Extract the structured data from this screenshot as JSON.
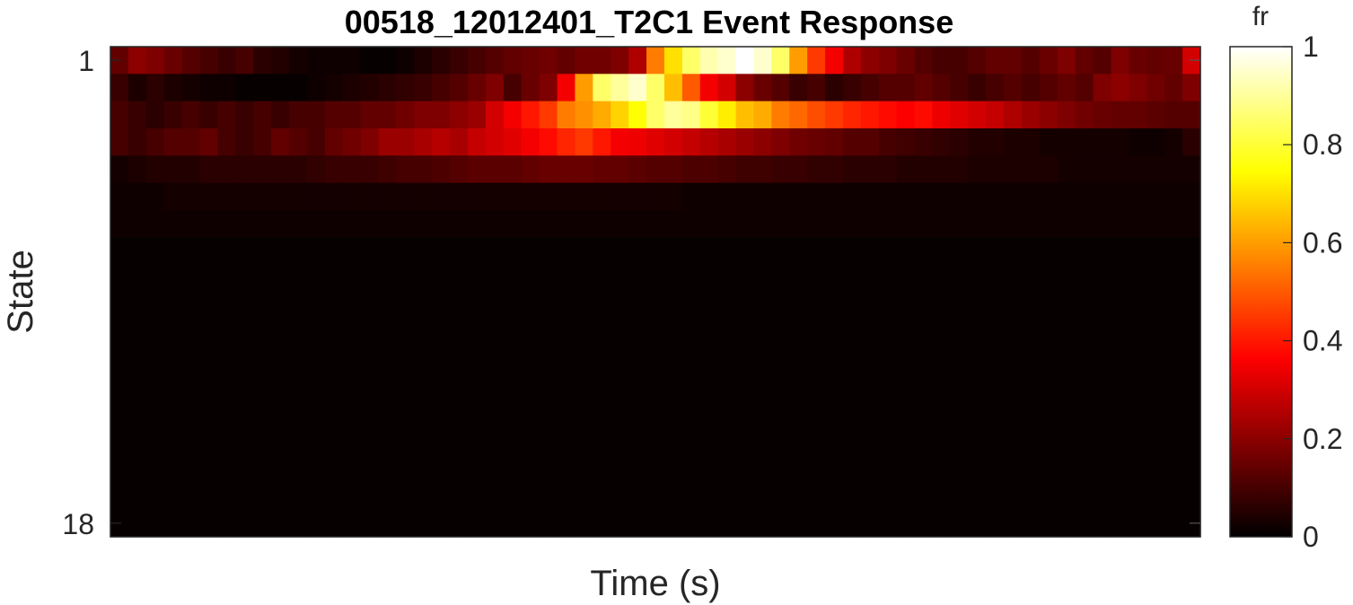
{
  "chart_data": {
    "type": "heatmap",
    "title": "00518_12012401_T2C1 Event Response",
    "xlabel": "Time (s)",
    "ylabel": "State",
    "y_ticks": [
      "1",
      "18"
    ],
    "colormap": "hot",
    "colorbar": {
      "label": "fr",
      "range": [
        0,
        1
      ],
      "ticks": [
        "0",
        "0.2",
        "0.4",
        "0.6",
        "0.8",
        "1"
      ],
      "placement": "right"
    },
    "n_rows": 18,
    "n_cols": 61,
    "rows": [
      [
        0.14,
        0.2,
        0.18,
        0.15,
        0.12,
        0.1,
        0.08,
        0.1,
        0.06,
        0.05,
        0.03,
        0.02,
        0.02,
        0.02,
        0.01,
        0.01,
        0.02,
        0.04,
        0.06,
        0.08,
        0.1,
        0.12,
        0.14,
        0.15,
        0.16,
        0.14,
        0.16,
        0.16,
        0.18,
        0.25,
        0.55,
        0.7,
        0.85,
        0.92,
        0.95,
        1.0,
        0.95,
        0.85,
        0.6,
        0.45,
        0.35,
        0.25,
        0.2,
        0.18,
        0.15,
        0.12,
        0.1,
        0.1,
        0.12,
        0.14,
        0.14,
        0.12,
        0.15,
        0.18,
        0.14,
        0.12,
        0.18,
        0.15,
        0.14,
        0.15,
        0.3
      ],
      [
        0.08,
        0.04,
        0.06,
        0.04,
        0.03,
        0.02,
        0.02,
        0.01,
        0.01,
        0.01,
        0.01,
        0.02,
        0.03,
        0.04,
        0.05,
        0.06,
        0.07,
        0.08,
        0.1,
        0.12,
        0.15,
        0.18,
        0.1,
        0.15,
        0.18,
        0.35,
        0.6,
        0.85,
        0.9,
        0.95,
        0.85,
        0.65,
        0.5,
        0.35,
        0.3,
        0.2,
        0.15,
        0.12,
        0.08,
        0.1,
        0.06,
        0.08,
        0.1,
        0.12,
        0.12,
        0.14,
        0.12,
        0.1,
        0.08,
        0.1,
        0.12,
        0.1,
        0.12,
        0.14,
        0.12,
        0.18,
        0.2,
        0.18,
        0.16,
        0.14,
        0.18
      ],
      [
        0.1,
        0.08,
        0.06,
        0.08,
        0.1,
        0.08,
        0.1,
        0.08,
        0.1,
        0.08,
        0.1,
        0.1,
        0.12,
        0.12,
        0.14,
        0.14,
        0.16,
        0.18,
        0.18,
        0.2,
        0.22,
        0.3,
        0.35,
        0.4,
        0.45,
        0.55,
        0.58,
        0.62,
        0.68,
        0.75,
        0.85,
        0.9,
        0.88,
        0.8,
        0.72,
        0.65,
        0.62,
        0.55,
        0.52,
        0.48,
        0.45,
        0.42,
        0.4,
        0.38,
        0.36,
        0.38,
        0.34,
        0.32,
        0.3,
        0.28,
        0.25,
        0.22,
        0.2,
        0.18,
        0.16,
        0.15,
        0.14,
        0.14,
        0.13,
        0.12,
        0.12
      ],
      [
        0.1,
        0.08,
        0.1,
        0.12,
        0.12,
        0.14,
        0.1,
        0.08,
        0.1,
        0.14,
        0.12,
        0.1,
        0.14,
        0.16,
        0.18,
        0.22,
        0.22,
        0.24,
        0.26,
        0.24,
        0.28,
        0.3,
        0.32,
        0.35,
        0.38,
        0.42,
        0.45,
        0.4,
        0.35,
        0.34,
        0.32,
        0.3,
        0.28,
        0.26,
        0.24,
        0.22,
        0.2,
        0.18,
        0.16,
        0.15,
        0.14,
        0.12,
        0.12,
        0.1,
        0.09,
        0.08,
        0.07,
        0.06,
        0.05,
        0.05,
        0.04,
        0.04,
        0.03,
        0.03,
        0.03,
        0.03,
        0.03,
        0.02,
        0.02,
        0.03,
        0.06
      ],
      [
        0.03,
        0.04,
        0.05,
        0.05,
        0.05,
        0.06,
        0.06,
        0.06,
        0.06,
        0.06,
        0.06,
        0.07,
        0.08,
        0.08,
        0.08,
        0.09,
        0.1,
        0.1,
        0.11,
        0.12,
        0.13,
        0.13,
        0.13,
        0.14,
        0.15,
        0.15,
        0.15,
        0.14,
        0.14,
        0.13,
        0.12,
        0.12,
        0.11,
        0.11,
        0.1,
        0.09,
        0.09,
        0.08,
        0.08,
        0.07,
        0.07,
        0.06,
        0.06,
        0.06,
        0.05,
        0.05,
        0.05,
        0.05,
        0.04,
        0.04,
        0.04,
        0.04,
        0.04,
        0.03,
        0.03,
        0.03,
        0.03,
        0.03,
        0.03,
        0.03,
        0.03
      ],
      [
        0.02,
        0.02,
        0.02,
        0.03,
        0.03,
        0.03,
        0.03,
        0.03,
        0.03,
        0.03,
        0.03,
        0.03,
        0.03,
        0.03,
        0.03,
        0.03,
        0.03,
        0.03,
        0.03,
        0.03,
        0.03,
        0.03,
        0.03,
        0.03,
        0.03,
        0.03,
        0.03,
        0.03,
        0.03,
        0.03,
        0.03,
        0.03,
        0.02,
        0.02,
        0.02,
        0.02,
        0.02,
        0.02,
        0.02,
        0.02,
        0.02,
        0.02,
        0.02,
        0.02,
        0.02,
        0.02,
        0.02,
        0.02,
        0.02,
        0.02,
        0.02,
        0.02,
        0.02,
        0.02,
        0.02,
        0.02,
        0.02,
        0.02,
        0.02,
        0.02,
        0.02
      ],
      [
        0.02,
        0.02,
        0.02,
        0.02,
        0.02,
        0.02,
        0.02,
        0.02,
        0.02,
        0.02,
        0.02,
        0.02,
        0.02,
        0.02,
        0.02,
        0.02,
        0.02,
        0.02,
        0.02,
        0.02,
        0.02,
        0.02,
        0.02,
        0.02,
        0.02,
        0.02,
        0.02,
        0.02,
        0.02,
        0.02,
        0.02,
        0.02,
        0.02,
        0.02,
        0.02,
        0.02,
        0.02,
        0.02,
        0.02,
        0.02,
        0.02,
        0.02,
        0.02,
        0.02,
        0.02,
        0.02,
        0.02,
        0.02,
        0.02,
        0.02,
        0.02,
        0.02,
        0.02,
        0.02,
        0.02,
        0.02,
        0.02,
        0.02,
        0.02,
        0.02,
        0.02
      ],
      [
        0.01,
        0.01,
        0.01,
        0.01,
        0.01,
        0.01,
        0.01,
        0.01,
        0.01,
        0.01,
        0.01,
        0.01,
        0.01,
        0.01,
        0.01,
        0.01,
        0.01,
        0.01,
        0.01,
        0.01,
        0.01,
        0.01,
        0.01,
        0.01,
        0.01,
        0.01,
        0.01,
        0.01,
        0.01,
        0.01,
        0.01,
        0.01,
        0.01,
        0.01,
        0.01,
        0.01,
        0.01,
        0.01,
        0.01,
        0.01,
        0.01,
        0.01,
        0.01,
        0.01,
        0.01,
        0.01,
        0.01,
        0.01,
        0.01,
        0.01,
        0.01,
        0.01,
        0.01,
        0.01,
        0.01,
        0.01,
        0.01,
        0.01,
        0.01,
        0.01,
        0.01
      ],
      [
        0.01,
        0.01,
        0.01,
        0.01,
        0.01,
        0.01,
        0.01,
        0.01,
        0.01,
        0.01,
        0.01,
        0.01,
        0.01,
        0.01,
        0.01,
        0.01,
        0.01,
        0.01,
        0.01,
        0.01,
        0.01,
        0.01,
        0.01,
        0.01,
        0.01,
        0.01,
        0.01,
        0.01,
        0.01,
        0.01,
        0.01,
        0.01,
        0.01,
        0.01,
        0.01,
        0.01,
        0.01,
        0.01,
        0.01,
        0.01,
        0.01,
        0.01,
        0.01,
        0.01,
        0.01,
        0.01,
        0.01,
        0.01,
        0.01,
        0.01,
        0.01,
        0.01,
        0.01,
        0.01,
        0.01,
        0.01,
        0.01,
        0.01,
        0.01,
        0.01,
        0.01
      ],
      [
        0.01,
        0.01,
        0.01,
        0.01,
        0.01,
        0.01,
        0.01,
        0.01,
        0.01,
        0.01,
        0.01,
        0.01,
        0.01,
        0.01,
        0.01,
        0.01,
        0.01,
        0.01,
        0.01,
        0.01,
        0.01,
        0.01,
        0.01,
        0.01,
        0.01,
        0.01,
        0.01,
        0.01,
        0.01,
        0.01,
        0.01,
        0.01,
        0.01,
        0.01,
        0.01,
        0.01,
        0.01,
        0.01,
        0.01,
        0.01,
        0.01,
        0.01,
        0.01,
        0.01,
        0.01,
        0.01,
        0.01,
        0.01,
        0.01,
        0.01,
        0.01,
        0.01,
        0.01,
        0.01,
        0.01,
        0.01,
        0.01,
        0.01,
        0.01,
        0.01,
        0.01
      ],
      [
        0.01,
        0.01,
        0.01,
        0.01,
        0.01,
        0.01,
        0.01,
        0.01,
        0.01,
        0.01,
        0.01,
        0.01,
        0.01,
        0.01,
        0.01,
        0.01,
        0.01,
        0.01,
        0.01,
        0.01,
        0.01,
        0.01,
        0.01,
        0.01,
        0.01,
        0.01,
        0.01,
        0.01,
        0.01,
        0.01,
        0.01,
        0.01,
        0.01,
        0.01,
        0.01,
        0.01,
        0.01,
        0.01,
        0.01,
        0.01,
        0.01,
        0.01,
        0.01,
        0.01,
        0.01,
        0.01,
        0.01,
        0.01,
        0.01,
        0.01,
        0.01,
        0.01,
        0.01,
        0.01,
        0.01,
        0.01,
        0.01,
        0.01,
        0.01,
        0.01,
        0.01
      ],
      [
        0.01,
        0.01,
        0.01,
        0.01,
        0.01,
        0.01,
        0.01,
        0.01,
        0.01,
        0.01,
        0.01,
        0.01,
        0.01,
        0.01,
        0.01,
        0.01,
        0.01,
        0.01,
        0.01,
        0.01,
        0.01,
        0.01,
        0.01,
        0.01,
        0.01,
        0.01,
        0.01,
        0.01,
        0.01,
        0.01,
        0.01,
        0.01,
        0.01,
        0.01,
        0.01,
        0.01,
        0.01,
        0.01,
        0.01,
        0.01,
        0.01,
        0.01,
        0.01,
        0.01,
        0.01,
        0.01,
        0.01,
        0.01,
        0.01,
        0.01,
        0.01,
        0.01,
        0.01,
        0.01,
        0.01,
        0.01,
        0.01,
        0.01,
        0.01,
        0.01,
        0.01
      ],
      [
        0.01,
        0.01,
        0.01,
        0.01,
        0.01,
        0.01,
        0.01,
        0.01,
        0.01,
        0.01,
        0.01,
        0.01,
        0.01,
        0.01,
        0.01,
        0.01,
        0.01,
        0.01,
        0.01,
        0.01,
        0.01,
        0.01,
        0.01,
        0.01,
        0.01,
        0.01,
        0.01,
        0.01,
        0.01,
        0.01,
        0.01,
        0.01,
        0.01,
        0.01,
        0.01,
        0.01,
        0.01,
        0.01,
        0.01,
        0.01,
        0.01,
        0.01,
        0.01,
        0.01,
        0.01,
        0.01,
        0.01,
        0.01,
        0.01,
        0.01,
        0.01,
        0.01,
        0.01,
        0.01,
        0.01,
        0.01,
        0.01,
        0.01,
        0.01,
        0.01,
        0.01
      ],
      [
        0.01,
        0.01,
        0.01,
        0.01,
        0.01,
        0.01,
        0.01,
        0.01,
        0.01,
        0.01,
        0.01,
        0.01,
        0.01,
        0.01,
        0.01,
        0.01,
        0.01,
        0.01,
        0.01,
        0.01,
        0.01,
        0.01,
        0.01,
        0.01,
        0.01,
        0.01,
        0.01,
        0.01,
        0.01,
        0.01,
        0.01,
        0.01,
        0.01,
        0.01,
        0.01,
        0.01,
        0.01,
        0.01,
        0.01,
        0.01,
        0.01,
        0.01,
        0.01,
        0.01,
        0.01,
        0.01,
        0.01,
        0.01,
        0.01,
        0.01,
        0.01,
        0.01,
        0.01,
        0.01,
        0.01,
        0.01,
        0.01,
        0.01,
        0.01,
        0.01,
        0.01
      ],
      [
        0.01,
        0.01,
        0.01,
        0.01,
        0.01,
        0.01,
        0.01,
        0.01,
        0.01,
        0.01,
        0.01,
        0.01,
        0.01,
        0.01,
        0.01,
        0.01,
        0.01,
        0.01,
        0.01,
        0.01,
        0.01,
        0.01,
        0.01,
        0.01,
        0.01,
        0.01,
        0.01,
        0.01,
        0.01,
        0.01,
        0.01,
        0.01,
        0.01,
        0.01,
        0.01,
        0.01,
        0.01,
        0.01,
        0.01,
        0.01,
        0.01,
        0.01,
        0.01,
        0.01,
        0.01,
        0.01,
        0.01,
        0.01,
        0.01,
        0.01,
        0.01,
        0.01,
        0.01,
        0.01,
        0.01,
        0.01,
        0.01,
        0.01,
        0.01,
        0.01,
        0.01
      ],
      [
        0.01,
        0.01,
        0.01,
        0.01,
        0.01,
        0.01,
        0.01,
        0.01,
        0.01,
        0.01,
        0.01,
        0.01,
        0.01,
        0.01,
        0.01,
        0.01,
        0.01,
        0.01,
        0.01,
        0.01,
        0.01,
        0.01,
        0.01,
        0.01,
        0.01,
        0.01,
        0.01,
        0.01,
        0.01,
        0.01,
        0.01,
        0.01,
        0.01,
        0.01,
        0.01,
        0.01,
        0.01,
        0.01,
        0.01,
        0.01,
        0.01,
        0.01,
        0.01,
        0.01,
        0.01,
        0.01,
        0.01,
        0.01,
        0.01,
        0.01,
        0.01,
        0.01,
        0.01,
        0.01,
        0.01,
        0.01,
        0.01,
        0.01,
        0.01,
        0.01,
        0.01
      ],
      [
        0.01,
        0.01,
        0.01,
        0.01,
        0.01,
        0.01,
        0.01,
        0.01,
        0.01,
        0.01,
        0.01,
        0.01,
        0.01,
        0.01,
        0.01,
        0.01,
        0.01,
        0.01,
        0.01,
        0.01,
        0.01,
        0.01,
        0.01,
        0.01,
        0.01,
        0.01,
        0.01,
        0.01,
        0.01,
        0.01,
        0.01,
        0.01,
        0.01,
        0.01,
        0.01,
        0.01,
        0.01,
        0.01,
        0.01,
        0.01,
        0.01,
        0.01,
        0.01,
        0.01,
        0.01,
        0.01,
        0.01,
        0.01,
        0.01,
        0.01,
        0.01,
        0.01,
        0.01,
        0.01,
        0.01,
        0.01,
        0.01,
        0.01,
        0.01,
        0.01,
        0.01
      ],
      [
        0.01,
        0.01,
        0.01,
        0.01,
        0.01,
        0.01,
        0.01,
        0.01,
        0.01,
        0.01,
        0.01,
        0.01,
        0.01,
        0.01,
        0.01,
        0.01,
        0.01,
        0.01,
        0.01,
        0.01,
        0.01,
        0.01,
        0.01,
        0.01,
        0.01,
        0.01,
        0.01,
        0.01,
        0.01,
        0.01,
        0.01,
        0.01,
        0.01,
        0.01,
        0.01,
        0.01,
        0.01,
        0.01,
        0.01,
        0.01,
        0.01,
        0.01,
        0.01,
        0.01,
        0.01,
        0.01,
        0.01,
        0.01,
        0.01,
        0.01,
        0.01,
        0.01,
        0.01,
        0.01,
        0.01,
        0.01,
        0.01,
        0.01,
        0.01,
        0.01,
        0.01
      ]
    ]
  }
}
